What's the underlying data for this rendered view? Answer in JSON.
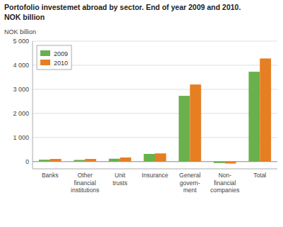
{
  "chart_data": {
    "type": "bar",
    "title": "Portofolio investemet abroad by sector. End of year 2009 and 2010.",
    "subtitle": "NOK billion",
    "ylabel": "NOK billion",
    "categories": [
      "Banks",
      "Other\nfinancial\ninstitutions",
      "Unit\ntrusts",
      "Insurance",
      "General\ngovern-\nment",
      "Non-\nfinancial\ncompanies",
      "Total"
    ],
    "series": [
      {
        "name": "2009",
        "color": "#6ab04c",
        "values": [
          80,
          70,
          120,
          320,
          2730,
          -60,
          3730
        ]
      },
      {
        "name": "2010",
        "color": "#e67e22",
        "values": [
          110,
          110,
          170,
          340,
          3200,
          -80,
          4280
        ]
      }
    ],
    "ylim": [
      -300,
      5000
    ],
    "yticks": [
      0,
      {
        "value": 1000,
        "label": "1 000"
      },
      {
        "value": 2000,
        "label": "2 000"
      },
      {
        "value": 3000,
        "label": "3 000"
      },
      {
        "value": 4000,
        "label": "4 000"
      },
      {
        "value": 5000,
        "label": "5 000"
      }
    ],
    "grid": true,
    "legend": "upper left"
  }
}
